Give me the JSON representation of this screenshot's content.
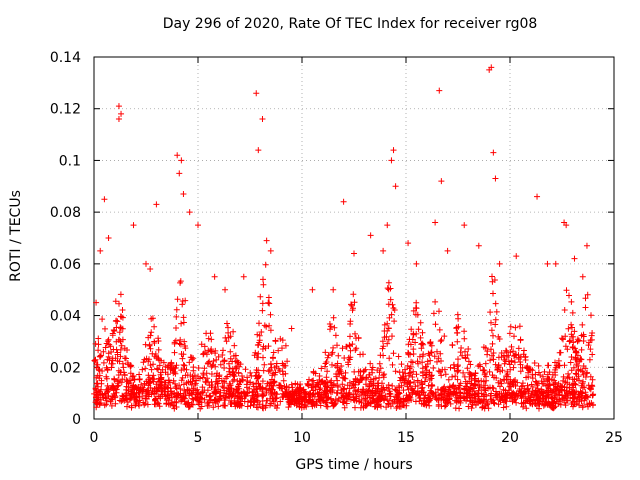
{
  "chart_data": {
    "type": "scatter",
    "title": "Day 296 of 2020, Rate Of TEC Index for receiver rg08",
    "xlabel": "GPS time / hours",
    "ylabel": "ROTI / TECUs",
    "xlim": [
      0,
      25
    ],
    "ylim": [
      0,
      0.14
    ],
    "xticks": [
      "0",
      "5",
      "10",
      "15",
      "20",
      "25"
    ],
    "yticks": [
      "0",
      "0.02",
      "0.04",
      "0.06",
      "0.08",
      "0.1",
      "0.12",
      "0.14"
    ],
    "grid": true,
    "marker": "+",
    "color": "#ff0000",
    "series": [
      {
        "name": "rg08",
        "x": [
          0.1,
          0.3,
          0.5,
          0.7,
          1.2,
          1.2,
          1.3,
          1.9,
          2.5,
          2.7,
          3.0,
          4.0,
          4.1,
          4.2,
          4.3,
          4.6,
          5.0,
          5.8,
          6.3,
          7.2,
          7.8,
          7.9,
          8.1,
          8.3,
          8.5,
          9.5,
          10.5,
          11.5,
          12.0,
          12.5,
          13.3,
          13.9,
          14.1,
          14.3,
          14.4,
          14.5,
          15.1,
          15.5,
          16.4,
          16.6,
          16.7,
          17.0,
          17.8,
          18.5,
          19.0,
          19.1,
          19.2,
          19.3,
          19.5,
          20.3,
          21.3,
          21.8,
          22.2,
          22.6,
          22.7,
          23.1,
          23.5,
          23.7
        ],
        "y": [
          0.045,
          0.065,
          0.085,
          0.07,
          0.121,
          0.116,
          0.118,
          0.075,
          0.06,
          0.058,
          0.083,
          0.102,
          0.095,
          0.1,
          0.087,
          0.08,
          0.075,
          0.055,
          0.05,
          0.055,
          0.126,
          0.104,
          0.116,
          0.069,
          0.065,
          0.035,
          0.05,
          0.05,
          0.084,
          0.064,
          0.071,
          0.065,
          0.075,
          0.1,
          0.104,
          0.09,
          0.068,
          0.06,
          0.076,
          0.127,
          0.092,
          0.065,
          0.075,
          0.067,
          0.135,
          0.136,
          0.103,
          0.093,
          0.06,
          0.063,
          0.086,
          0.06,
          0.06,
          0.076,
          0.075,
          0.062,
          0.055,
          0.067
        ]
      }
    ]
  }
}
